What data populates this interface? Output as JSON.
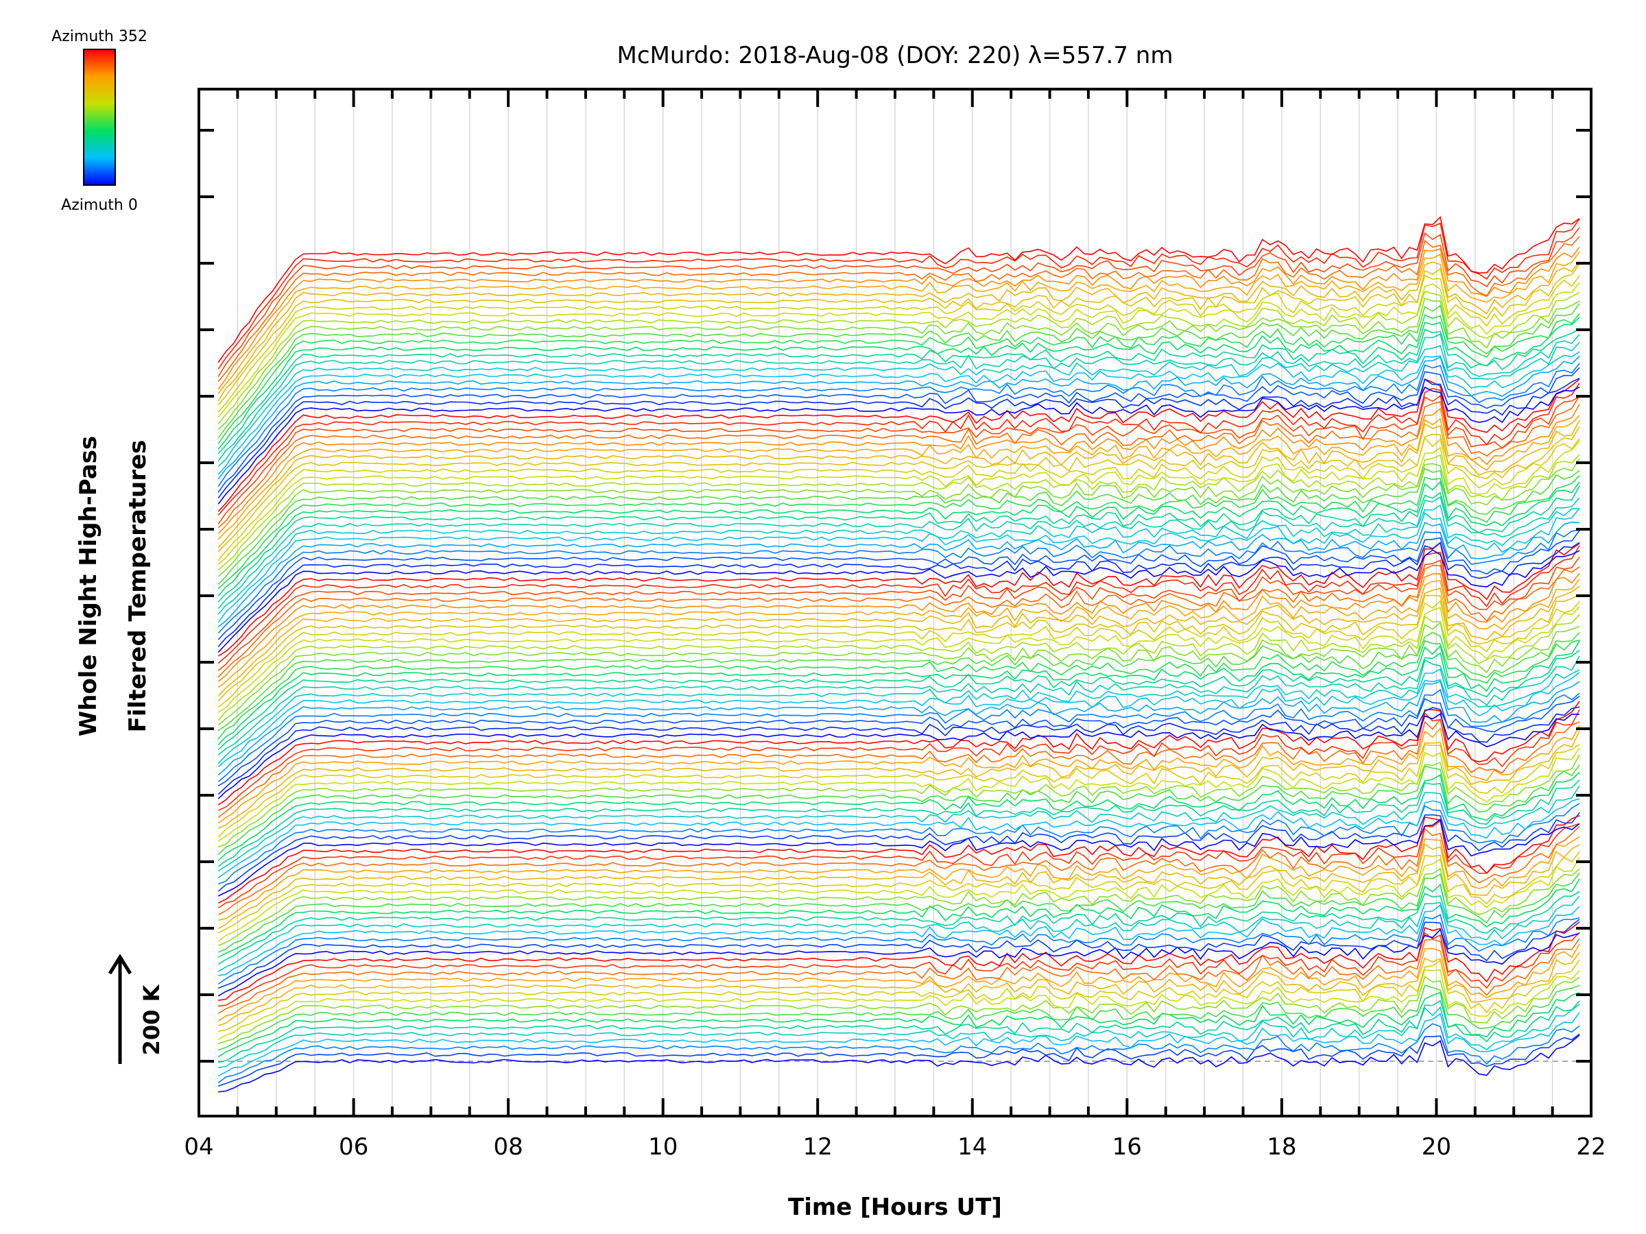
{
  "chart_data": {
    "type": "line",
    "title": "McMurdo: 2018-Aug-08 (DOY: 220) λ=557.7 nm",
    "xlabel": "Time [Hours UT]",
    "ylabel_line1": "Whole Night High-Pass",
    "ylabel_line2": "Filtered Temperatures",
    "xlim": [
      4,
      22
    ],
    "x_ticks": [
      "04",
      "06",
      "08",
      "10",
      "12",
      "14",
      "16",
      "18",
      "20",
      "22"
    ],
    "x_tick_values": [
      4,
      6,
      8,
      10,
      12,
      14,
      16,
      18,
      20,
      22
    ],
    "scale_bar_label": "200 K",
    "scale_bar_kelvin": 200,
    "legend": {
      "top_label": "Azimuth 352",
      "bottom_label": "Azimuth 0",
      "azimuth_min": 0,
      "azimuth_max": 352
    },
    "colormap": [
      "#0000ff",
      "#00c0ff",
      "#00e060",
      "#c8e000",
      "#ffa000",
      "#ff0000"
    ],
    "rings": 6,
    "azimuths_per_ring": [
      16,
      16,
      16,
      24,
      24,
      24
    ],
    "grid": true,
    "time_start": 4.25,
    "time_end": 21.85,
    "time_step": 0.1
  }
}
